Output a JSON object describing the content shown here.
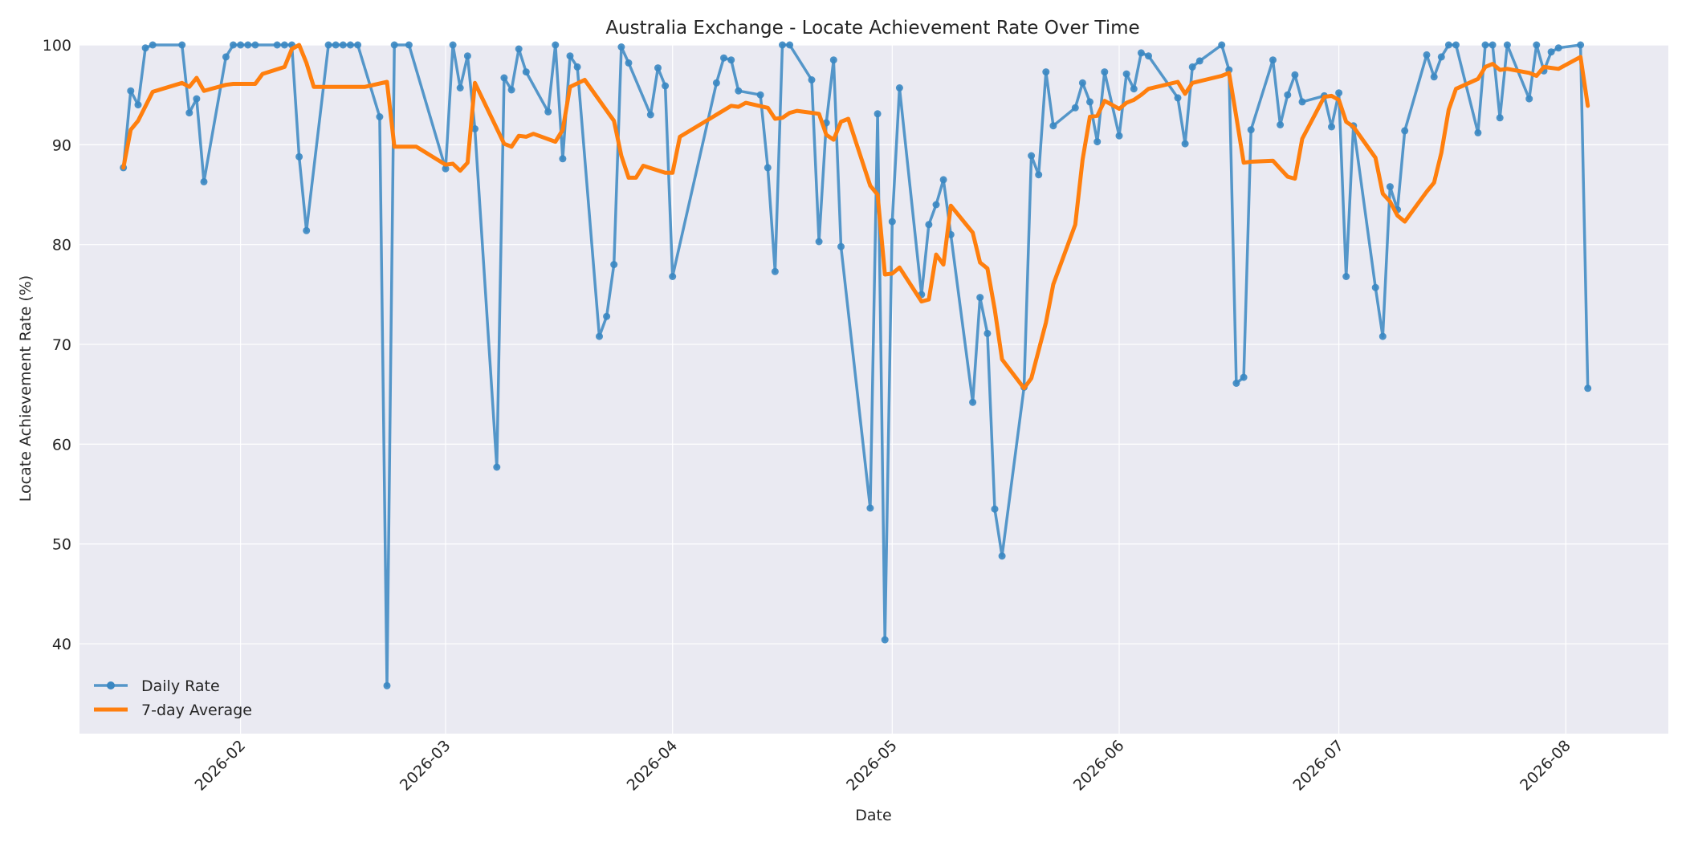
{
  "chart_data": {
    "type": "line",
    "title": "Australia Exchange - Locate Achievement Rate Over Time",
    "xlabel": "Date",
    "ylabel": "Locate Achievement Rate (%)",
    "xlim": [
      "2026-01-10",
      "2026-08-15"
    ],
    "ylim": [
      31,
      100
    ],
    "x_ticks": [
      "2026-02-01",
      "2026-03-01",
      "2026-04-01",
      "2026-05-01",
      "2026-06-01",
      "2026-07-01",
      "2026-08-01"
    ],
    "x_tick_labels": [
      "2026-02",
      "2026-03",
      "2026-04",
      "2026-05",
      "2026-06",
      "2026-07",
      "2026-08"
    ],
    "y_ticks": [
      40,
      50,
      60,
      70,
      80,
      90,
      100
    ],
    "grid": true,
    "legend_position": "lower-left",
    "colors": {
      "background": "#eaeaf2",
      "grid": "#ffffff",
      "daily": "#3a87c2",
      "average": "#ff7f0e"
    },
    "series": [
      {
        "name": "Daily Rate",
        "style": "line-with-markers",
        "color": "#3a87c2",
        "points": [
          [
            "2026-01-16",
            87.7
          ],
          [
            "2026-01-17",
            95.4
          ],
          [
            "2026-01-18",
            94.0
          ],
          [
            "2026-01-19",
            99.7
          ],
          [
            "2026-01-20",
            100
          ],
          [
            "2026-01-24",
            100
          ],
          [
            "2026-01-25",
            93.2
          ],
          [
            "2026-01-26",
            94.6
          ],
          [
            "2026-01-27",
            86.3
          ],
          [
            "2026-01-30",
            98.8
          ],
          [
            "2026-01-31",
            100
          ],
          [
            "2026-02-01",
            100
          ],
          [
            "2026-02-02",
            100
          ],
          [
            "2026-02-03",
            100
          ],
          [
            "2026-02-06",
            100
          ],
          [
            "2026-02-07",
            100
          ],
          [
            "2026-02-08",
            100
          ],
          [
            "2026-02-09",
            88.8
          ],
          [
            "2026-02-10",
            81.4
          ],
          [
            "2026-02-13",
            100
          ],
          [
            "2026-02-14",
            100
          ],
          [
            "2026-02-15",
            100
          ],
          [
            "2026-02-16",
            100
          ],
          [
            "2026-02-17",
            100
          ],
          [
            "2026-02-20",
            92.8
          ],
          [
            "2026-02-21",
            35.8
          ],
          [
            "2026-02-22",
            100
          ],
          [
            "2026-02-24",
            100
          ],
          [
            "2026-03-01",
            87.6
          ],
          [
            "2026-03-02",
            100
          ],
          [
            "2026-03-03",
            95.7
          ],
          [
            "2026-03-04",
            98.9
          ],
          [
            "2026-03-05",
            91.6
          ],
          [
            "2026-03-08",
            57.7
          ],
          [
            "2026-03-09",
            96.7
          ],
          [
            "2026-03-10",
            95.5
          ],
          [
            "2026-03-11",
            99.6
          ],
          [
            "2026-03-12",
            97.3
          ],
          [
            "2026-03-15",
            93.3
          ],
          [
            "2026-03-16",
            100
          ],
          [
            "2026-03-17",
            88.6
          ],
          [
            "2026-03-18",
            98.9
          ],
          [
            "2026-03-19",
            97.8
          ],
          [
            "2026-03-22",
            70.8
          ],
          [
            "2026-03-23",
            72.8
          ],
          [
            "2026-03-24",
            78.0
          ],
          [
            "2026-03-25",
            99.8
          ],
          [
            "2026-03-26",
            98.2
          ],
          [
            "2026-03-29",
            93.0
          ],
          [
            "2026-03-30",
            97.7
          ],
          [
            "2026-03-31",
            95.9
          ],
          [
            "2026-04-01",
            76.8
          ],
          [
            "2026-04-07",
            96.2
          ],
          [
            "2026-04-08",
            98.7
          ],
          [
            "2026-04-09",
            98.5
          ],
          [
            "2026-04-10",
            95.4
          ],
          [
            "2026-04-13",
            95.0
          ],
          [
            "2026-04-14",
            87.7
          ],
          [
            "2026-04-15",
            77.3
          ],
          [
            "2026-04-16",
            100
          ],
          [
            "2026-04-17",
            100
          ],
          [
            "2026-04-20",
            96.5
          ],
          [
            "2026-04-21",
            80.3
          ],
          [
            "2026-04-22",
            92.2
          ],
          [
            "2026-04-23",
            98.5
          ],
          [
            "2026-04-24",
            79.8
          ],
          [
            "2026-04-28",
            53.6
          ],
          [
            "2026-04-29",
            93.1
          ],
          [
            "2026-04-30",
            40.4
          ],
          [
            "2026-05-01",
            82.3
          ],
          [
            "2026-05-02",
            95.7
          ],
          [
            "2026-05-05",
            75.0
          ],
          [
            "2026-05-06",
            82.0
          ],
          [
            "2026-05-07",
            84.0
          ],
          [
            "2026-05-08",
            86.5
          ],
          [
            "2026-05-09",
            81.0
          ],
          [
            "2026-05-12",
            64.2
          ],
          [
            "2026-05-13",
            74.7
          ],
          [
            "2026-05-14",
            71.1
          ],
          [
            "2026-05-15",
            53.5
          ],
          [
            "2026-05-16",
            48.8
          ],
          [
            "2026-05-19",
            65.7
          ],
          [
            "2026-05-20",
            88.9
          ],
          [
            "2026-05-21",
            87.0
          ],
          [
            "2026-05-22",
            97.3
          ],
          [
            "2026-05-23",
            91.9
          ],
          [
            "2026-05-26",
            93.7
          ],
          [
            "2026-05-27",
            96.2
          ],
          [
            "2026-05-28",
            94.3
          ],
          [
            "2026-05-29",
            90.3
          ],
          [
            "2026-05-30",
            97.3
          ],
          [
            "2026-06-01",
            90.9
          ],
          [
            "2026-06-02",
            97.1
          ],
          [
            "2026-06-03",
            95.6
          ],
          [
            "2026-06-04",
            99.2
          ],
          [
            "2026-06-05",
            98.9
          ],
          [
            "2026-06-09",
            94.7
          ],
          [
            "2026-06-10",
            90.1
          ],
          [
            "2026-06-11",
            97.8
          ],
          [
            "2026-06-12",
            98.4
          ],
          [
            "2026-06-15",
            100
          ],
          [
            "2026-06-16",
            97.5
          ],
          [
            "2026-06-17",
            66.1
          ],
          [
            "2026-06-18",
            66.7
          ],
          [
            "2026-06-19",
            91.5
          ],
          [
            "2026-06-22",
            98.5
          ],
          [
            "2026-06-23",
            92.0
          ],
          [
            "2026-06-24",
            95.0
          ],
          [
            "2026-06-25",
            97.0
          ],
          [
            "2026-06-26",
            94.3
          ],
          [
            "2026-06-29",
            94.9
          ],
          [
            "2026-06-30",
            91.8
          ],
          [
            "2026-07-01",
            95.2
          ],
          [
            "2026-07-02",
            76.8
          ],
          [
            "2026-07-03",
            91.9
          ],
          [
            "2026-07-06",
            75.7
          ],
          [
            "2026-07-07",
            70.8
          ],
          [
            "2026-07-08",
            85.8
          ],
          [
            "2026-07-09",
            83.5
          ],
          [
            "2026-07-10",
            91.4
          ],
          [
            "2026-07-13",
            99.0
          ],
          [
            "2026-07-14",
            96.8
          ],
          [
            "2026-07-15",
            98.8
          ],
          [
            "2026-07-16",
            100
          ],
          [
            "2026-07-17",
            100
          ],
          [
            "2026-07-20",
            91.2
          ],
          [
            "2026-07-21",
            100
          ],
          [
            "2026-07-22",
            100
          ],
          [
            "2026-07-23",
            92.7
          ],
          [
            "2026-07-24",
            100
          ],
          [
            "2026-07-27",
            94.6
          ],
          [
            "2026-07-28",
            100
          ],
          [
            "2026-07-29",
            97.4
          ],
          [
            "2026-07-30",
            99.3
          ],
          [
            "2026-07-31",
            99.7
          ],
          [
            "2026-08-03",
            100
          ],
          [
            "2026-08-04",
            65.6
          ]
        ]
      },
      {
        "name": "7-day Average",
        "style": "line",
        "color": "#ff7f0e",
        "points": [
          [
            "2026-01-16",
            87.7
          ],
          [
            "2026-01-17",
            91.5
          ],
          [
            "2026-01-18",
            92.4
          ],
          [
            "2026-01-20",
            95.3
          ],
          [
            "2026-01-24",
            96.2
          ],
          [
            "2026-01-25",
            95.8
          ],
          [
            "2026-01-26",
            96.7
          ],
          [
            "2026-01-27",
            95.4
          ],
          [
            "2026-01-30",
            96.0
          ],
          [
            "2026-01-31",
            96.1
          ],
          [
            "2026-02-03",
            96.1
          ],
          [
            "2026-02-04",
            97.1
          ],
          [
            "2026-02-07",
            97.8
          ],
          [
            "2026-02-08",
            99.6
          ],
          [
            "2026-02-09",
            100
          ],
          [
            "2026-02-10",
            98.2
          ],
          [
            "2026-02-11",
            95.8
          ],
          [
            "2026-02-18",
            95.8
          ],
          [
            "2026-02-21",
            96.3
          ],
          [
            "2026-02-22",
            89.8
          ],
          [
            "2026-02-25",
            89.8
          ],
          [
            "2026-03-01",
            88.0
          ],
          [
            "2026-03-02",
            88.1
          ],
          [
            "2026-03-03",
            87.4
          ],
          [
            "2026-03-04",
            88.2
          ],
          [
            "2026-03-05",
            96.2
          ],
          [
            "2026-03-09",
            90.1
          ],
          [
            "2026-03-10",
            89.8
          ],
          [
            "2026-03-11",
            90.9
          ],
          [
            "2026-03-12",
            90.8
          ],
          [
            "2026-03-13",
            91.1
          ],
          [
            "2026-03-16",
            90.3
          ],
          [
            "2026-03-17",
            91.5
          ],
          [
            "2026-03-18",
            95.8
          ],
          [
            "2026-03-20",
            96.5
          ],
          [
            "2026-03-24",
            92.4
          ],
          [
            "2026-03-25",
            88.9
          ],
          [
            "2026-03-26",
            86.7
          ],
          [
            "2026-03-27",
            86.7
          ],
          [
            "2026-03-28",
            87.9
          ],
          [
            "2026-03-31",
            87.2
          ],
          [
            "2026-04-01",
            87.2
          ],
          [
            "2026-04-02",
            90.8
          ],
          [
            "2026-04-09",
            93.9
          ],
          [
            "2026-04-10",
            93.8
          ],
          [
            "2026-04-11",
            94.2
          ],
          [
            "2026-04-14",
            93.7
          ],
          [
            "2026-04-15",
            92.6
          ],
          [
            "2026-04-16",
            92.7
          ],
          [
            "2026-04-17",
            93.2
          ],
          [
            "2026-04-18",
            93.4
          ],
          [
            "2026-04-21",
            93.1
          ],
          [
            "2026-04-22",
            91.0
          ],
          [
            "2026-04-23",
            90.5
          ],
          [
            "2026-04-24",
            92.3
          ],
          [
            "2026-04-25",
            92.6
          ],
          [
            "2026-04-28",
            85.9
          ],
          [
            "2026-04-29",
            85.0
          ],
          [
            "2026-04-30",
            77.0
          ],
          [
            "2026-05-01",
            77.1
          ],
          [
            "2026-05-02",
            77.7
          ],
          [
            "2026-05-05",
            74.3
          ],
          [
            "2026-05-06",
            74.5
          ],
          [
            "2026-05-07",
            79.0
          ],
          [
            "2026-05-08",
            78.0
          ],
          [
            "2026-05-09",
            83.9
          ],
          [
            "2026-05-12",
            81.2
          ],
          [
            "2026-05-13",
            78.2
          ],
          [
            "2026-05-14",
            77.6
          ],
          [
            "2026-05-15",
            73.5
          ],
          [
            "2026-05-16",
            68.5
          ],
          [
            "2026-05-19",
            65.6
          ],
          [
            "2026-05-20",
            66.6
          ],
          [
            "2026-05-22",
            72.2
          ],
          [
            "2026-05-23",
            76.0
          ],
          [
            "2026-05-26",
            82.0
          ],
          [
            "2026-05-27",
            88.5
          ],
          [
            "2026-05-28",
            92.8
          ],
          [
            "2026-05-29",
            92.9
          ],
          [
            "2026-05-30",
            94.4
          ],
          [
            "2026-06-01",
            93.6
          ],
          [
            "2026-06-02",
            94.2
          ],
          [
            "2026-06-03",
            94.5
          ],
          [
            "2026-06-04",
            95.0
          ],
          [
            "2026-06-05",
            95.6
          ],
          [
            "2026-06-09",
            96.3
          ],
          [
            "2026-06-10",
            95.1
          ],
          [
            "2026-06-11",
            96.2
          ],
          [
            "2026-06-15",
            96.9
          ],
          [
            "2026-06-16",
            97.2
          ],
          [
            "2026-06-17",
            92.8
          ],
          [
            "2026-06-18",
            88.2
          ],
          [
            "2026-06-19",
            88.3
          ],
          [
            "2026-06-22",
            88.4
          ],
          [
            "2026-06-23",
            87.6
          ],
          [
            "2026-06-24",
            86.8
          ],
          [
            "2026-06-25",
            86.6
          ],
          [
            "2026-06-26",
            90.6
          ],
          [
            "2026-06-29",
            94.8
          ],
          [
            "2026-06-30",
            94.9
          ],
          [
            "2026-07-01",
            94.5
          ],
          [
            "2026-07-02",
            92.3
          ],
          [
            "2026-07-03",
            91.8
          ],
          [
            "2026-07-06",
            88.7
          ],
          [
            "2026-07-07",
            85.1
          ],
          [
            "2026-07-08",
            84.3
          ],
          [
            "2026-07-09",
            82.9
          ],
          [
            "2026-07-10",
            82.3
          ],
          [
            "2026-07-13",
            85.3
          ],
          [
            "2026-07-14",
            86.2
          ],
          [
            "2026-07-15",
            89.2
          ],
          [
            "2026-07-16",
            93.5
          ],
          [
            "2026-07-17",
            95.6
          ],
          [
            "2026-07-20",
            96.6
          ],
          [
            "2026-07-21",
            97.8
          ],
          [
            "2026-07-22",
            98.1
          ],
          [
            "2026-07-23",
            97.5
          ],
          [
            "2026-07-24",
            97.6
          ],
          [
            "2026-07-27",
            97.2
          ],
          [
            "2026-07-28",
            96.9
          ],
          [
            "2026-07-29",
            97.8
          ],
          [
            "2026-07-31",
            97.6
          ],
          [
            "2026-08-03",
            98.8
          ],
          [
            "2026-08-04",
            93.9
          ]
        ]
      }
    ]
  }
}
